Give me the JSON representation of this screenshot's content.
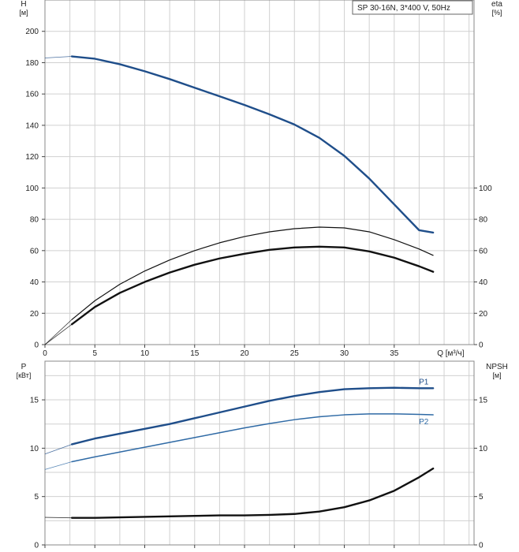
{
  "chart_data": [
    {
      "type": "line",
      "legend_box": "SP 30-16N, 3*400 V, 50Hz",
      "left_axis": {
        "name": "H",
        "unit": "[м]",
        "ylim": [
          0,
          220
        ],
        "ticks": [
          0,
          20,
          40,
          60,
          80,
          100,
          120,
          140,
          160,
          180,
          200
        ]
      },
      "right_axis": {
        "name": "eta",
        "unit": "[%]",
        "ylim": [
          0,
          220
        ],
        "ticks": [
          0,
          20,
          40,
          60,
          80,
          100
        ]
      },
      "x_axis": {
        "label": "Q [м³/ч]",
        "xlim": [
          0,
          43
        ],
        "ticks": [
          0,
          5,
          10,
          15,
          20,
          25,
          30,
          35
        ]
      },
      "grid": true,
      "series": [
        {
          "key": "H",
          "color": "#1f4e8a",
          "width": 2.4,
          "x": [
            0,
            2.7,
            5,
            7.5,
            10,
            12.5,
            15,
            17.5,
            20,
            22.5,
            25,
            27.5,
            30,
            32.5,
            35,
            37.5,
            38.9
          ],
          "y": [
            183,
            184,
            182.5,
            179,
            174.5,
            169.5,
            164,
            158.5,
            153,
            147,
            140.5,
            132,
            120.5,
            106,
            89.5,
            73,
            71.5
          ]
        },
        {
          "key": "eta-total",
          "color": "#111111",
          "width": 2.4,
          "x": [
            0,
            2.7,
            5,
            7.5,
            10,
            12.5,
            15,
            17.5,
            20,
            22.5,
            25,
            27.5,
            30,
            32.5,
            35,
            37.5,
            38.9
          ],
          "y": [
            0,
            13,
            24,
            33,
            40,
            46,
            51,
            55,
            58,
            60.5,
            62,
            62.5,
            62,
            59.5,
            55.5,
            50,
            46.5
          ]
        },
        {
          "key": "eta-pump",
          "color": "#111111",
          "width": 1.2,
          "x": [
            0,
            2.7,
            5,
            7.5,
            10,
            12.5,
            15,
            17.5,
            20,
            22.5,
            25,
            27.5,
            30,
            32.5,
            35,
            37.5,
            38.9
          ],
          "y": [
            0,
            16,
            28,
            38.5,
            47,
            54,
            60,
            65,
            69,
            72,
            74,
            75,
            74.5,
            72,
            67,
            61,
            57
          ]
        }
      ]
    },
    {
      "type": "line",
      "left_axis": {
        "name": "P",
        "unit": "[кВт]",
        "ylim": [
          0,
          19
        ],
        "ticks": [
          0,
          5,
          10,
          15
        ]
      },
      "right_axis": {
        "name": "NPSH",
        "unit": "[м]",
        "ylim": [
          0,
          19
        ],
        "ticks": [
          0,
          5,
          10,
          15
        ]
      },
      "x_axis": {
        "xlim": [
          0,
          43
        ],
        "ticks": [
          0,
          5,
          10,
          15,
          20,
          25,
          30,
          35
        ]
      },
      "grid": true,
      "series": [
        {
          "name": "P1",
          "color": "#1f4e8a",
          "width": 2.4,
          "x": [
            0,
            2.7,
            5,
            7.5,
            10,
            12.5,
            15,
            17.5,
            20,
            22.5,
            25,
            27.5,
            30,
            32.5,
            35,
            37.5,
            38.9
          ],
          "y": [
            9.4,
            10.4,
            11.0,
            11.5,
            12.0,
            12.5,
            13.1,
            13.7,
            14.3,
            14.9,
            15.4,
            15.8,
            16.1,
            16.2,
            16.25,
            16.2,
            16.2
          ]
        },
        {
          "name": "P2",
          "color": "#2f6aa5",
          "width": 1.5,
          "x": [
            0,
            2.7,
            5,
            7.5,
            10,
            12.5,
            15,
            17.5,
            20,
            22.5,
            25,
            27.5,
            30,
            32.5,
            35,
            37.5,
            38.9
          ],
          "y": [
            7.8,
            8.6,
            9.1,
            9.6,
            10.1,
            10.6,
            11.1,
            11.6,
            12.1,
            12.55,
            12.95,
            13.25,
            13.45,
            13.55,
            13.55,
            13.5,
            13.45
          ]
        },
        {
          "key": "NPSH",
          "color": "#111111",
          "width": 2.4,
          "x": [
            0,
            2.7,
            5,
            7.5,
            10,
            12.5,
            15,
            17.5,
            20,
            22.5,
            25,
            27.5,
            30,
            32.5,
            35,
            37.5,
            38.9
          ],
          "y": [
            2.85,
            2.8,
            2.8,
            2.85,
            2.9,
            2.95,
            3.0,
            3.05,
            3.05,
            3.1,
            3.2,
            3.45,
            3.9,
            4.6,
            5.6,
            7.0,
            7.9
          ]
        }
      ]
    }
  ]
}
